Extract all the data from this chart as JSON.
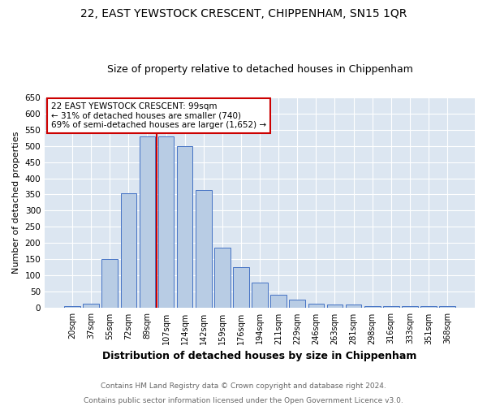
{
  "title": "22, EAST YEWSTOCK CRESCENT, CHIPPENHAM, SN15 1QR",
  "subtitle": "Size of property relative to detached houses in Chippenham",
  "xlabel": "Distribution of detached houses by size in Chippenham",
  "ylabel": "Number of detached properties",
  "footnote1": "Contains HM Land Registry data © Crown copyright and database right 2024.",
  "footnote2": "Contains public sector information licensed under the Open Government Licence v3.0.",
  "categories": [
    "20sqm",
    "37sqm",
    "55sqm",
    "72sqm",
    "89sqm",
    "107sqm",
    "124sqm",
    "142sqm",
    "159sqm",
    "176sqm",
    "194sqm",
    "211sqm",
    "229sqm",
    "246sqm",
    "263sqm",
    "281sqm",
    "298sqm",
    "316sqm",
    "333sqm",
    "351sqm",
    "368sqm"
  ],
  "values": [
    5,
    14,
    150,
    353,
    530,
    530,
    500,
    365,
    185,
    125,
    78,
    40,
    27,
    14,
    12,
    10,
    7,
    5,
    5,
    5,
    5
  ],
  "bar_color": "#b8cce4",
  "bar_edge_color": "#4472c4",
  "marker_label_line1": "22 EAST YEWSTOCK CRESCENT: 99sqm",
  "marker_label_line2": "← 31% of detached houses are smaller (740)",
  "marker_label_line3": "69% of semi-detached houses are larger (1,652) →",
  "marker_color": "#cc0000",
  "ylim": [
    0,
    650
  ],
  "yticks": [
    0,
    50,
    100,
    150,
    200,
    250,
    300,
    350,
    400,
    450,
    500,
    550,
    600,
    650
  ],
  "bg_color": "#dce6f1",
  "title_fontsize": 10,
  "subtitle_fontsize": 9,
  "footnote_fontsize": 6.5,
  "footnote_color": "#666666"
}
